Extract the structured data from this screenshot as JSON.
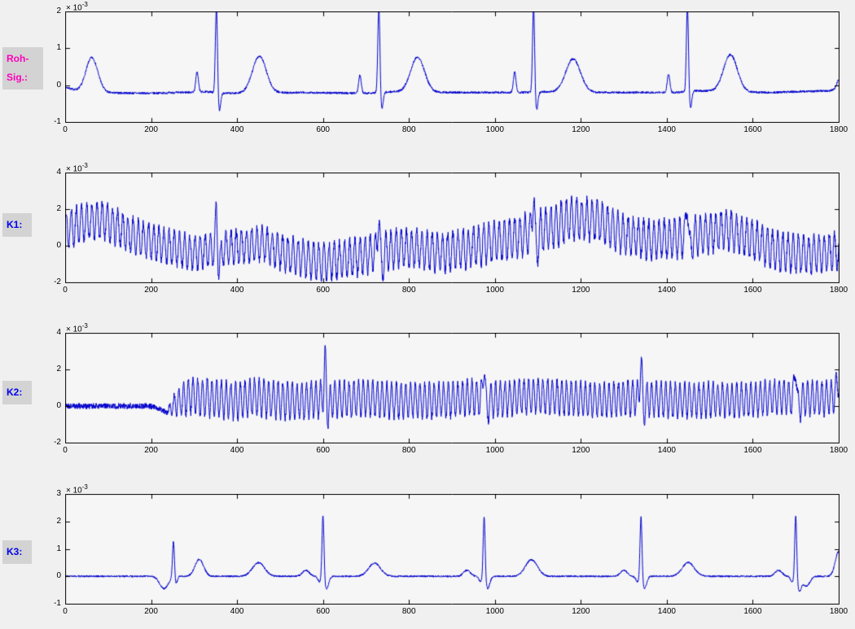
{
  "figure": {
    "background": "#f0f0f0",
    "plot_background": "#f6f6f6",
    "axis_color": "#000000"
  },
  "chart_data": [
    {
      "type": "line",
      "label_lines": [
        "Roh-",
        "Sig.:"
      ],
      "label_color": "#ff00bb",
      "scale_label": "× 10",
      "scale_exp": "-3",
      "line_color": "#0000cc",
      "xlim": [
        0,
        1800
      ],
      "ylim": [
        -1,
        2
      ],
      "xticks": [
        0,
        200,
        400,
        600,
        800,
        1000,
        1200,
        1400,
        1600,
        1800
      ],
      "yticks": [
        -1,
        0,
        1,
        2
      ],
      "y_unit_multiplier": "1e-3",
      "signal": {
        "seed": 7,
        "noise": 0.03,
        "baseline": [
          [
            0,
            -0.05
          ],
          [
            40,
            -0.2
          ],
          [
            200,
            -0.22
          ],
          [
            330,
            -0.18
          ],
          [
            380,
            -0.22
          ],
          [
            560,
            -0.2
          ],
          [
            700,
            -0.22
          ],
          [
            760,
            -0.18
          ],
          [
            940,
            -0.2
          ],
          [
            1060,
            -0.2
          ],
          [
            1120,
            -0.18
          ],
          [
            1300,
            -0.2
          ],
          [
            1420,
            -0.2
          ],
          [
            1470,
            -0.15
          ],
          [
            1640,
            -0.2
          ],
          [
            1780,
            -0.15
          ],
          [
            1800,
            -0.05
          ]
        ],
        "bumps": [
          {
            "x": 62,
            "a": 0.95,
            "w": 14
          },
          {
            "x": 307,
            "a": 0.55,
            "w": 3
          },
          {
            "x": 352,
            "a": 2.35,
            "w": 2.4
          },
          {
            "x": 359,
            "a": -0.5,
            "w": 3
          },
          {
            "x": 452,
            "a": 1.0,
            "w": 16
          },
          {
            "x": 686,
            "a": 0.5,
            "w": 3
          },
          {
            "x": 730,
            "a": 2.35,
            "w": 2.4
          },
          {
            "x": 737,
            "a": -0.45,
            "w": 3
          },
          {
            "x": 820,
            "a": 0.95,
            "w": 16
          },
          {
            "x": 1046,
            "a": 0.55,
            "w": 3
          },
          {
            "x": 1090,
            "a": 2.35,
            "w": 2.4
          },
          {
            "x": 1097,
            "a": -0.5,
            "w": 3
          },
          {
            "x": 1182,
            "a": 0.9,
            "w": 17
          },
          {
            "x": 1404,
            "a": 0.5,
            "w": 3
          },
          {
            "x": 1448,
            "a": 2.35,
            "w": 2.4
          },
          {
            "x": 1455,
            "a": -0.45,
            "w": 3
          },
          {
            "x": 1548,
            "a": 1.0,
            "w": 16
          },
          {
            "x": 1800,
            "a": 0.2,
            "w": 4
          }
        ],
        "osc": null
      }
    },
    {
      "type": "line",
      "label_lines": [
        "K1:"
      ],
      "label_color": "#0000ee",
      "scale_label": "× 10",
      "scale_exp": "-3",
      "line_color": "#0000cc",
      "xlim": [
        0,
        1800
      ],
      "ylim": [
        -2,
        4
      ],
      "xticks": [
        0,
        200,
        400,
        600,
        800,
        1000,
        1200,
        1400,
        1600,
        1800
      ],
      "yticks": [
        -2,
        0,
        2,
        4
      ],
      "y_unit_multiplier": "1e-3",
      "signal": {
        "seed": 13,
        "noise": 0.22,
        "baseline": [
          [
            0,
            0.9
          ],
          [
            50,
            1.3
          ],
          [
            90,
            1.4
          ],
          [
            150,
            0.6
          ],
          [
            200,
            0.2
          ],
          [
            250,
            -0.1
          ],
          [
            300,
            -0.4
          ],
          [
            360,
            -0.2
          ],
          [
            420,
            0
          ],
          [
            460,
            0.1
          ],
          [
            520,
            -0.5
          ],
          [
            600,
            -0.9
          ],
          [
            660,
            -0.7
          ],
          [
            720,
            -0.4
          ],
          [
            780,
            -0.1
          ],
          [
            830,
            -0.2
          ],
          [
            880,
            -0.4
          ],
          [
            940,
            -0.1
          ],
          [
            1000,
            0.2
          ],
          [
            1060,
            0.5
          ],
          [
            1120,
            0.9
          ],
          [
            1180,
            1.5
          ],
          [
            1240,
            1.4
          ],
          [
            1300,
            0.6
          ],
          [
            1360,
            0.3
          ],
          [
            1420,
            0.4
          ],
          [
            1480,
            0.6
          ],
          [
            1540,
            0.9
          ],
          [
            1600,
            0.3
          ],
          [
            1660,
            -0.3
          ],
          [
            1720,
            -0.5
          ],
          [
            1800,
            -0.3
          ]
        ],
        "bumps": [
          {
            "x": 352,
            "a": 2.2,
            "w": 2.4
          },
          {
            "x": 358,
            "a": -1.0,
            "w": 4
          },
          {
            "x": 730,
            "a": 2.4,
            "w": 2.4
          },
          {
            "x": 736,
            "a": -0.9,
            "w": 4
          },
          {
            "x": 1090,
            "a": 2.6,
            "w": 2.4
          },
          {
            "x": 1096,
            "a": -1.0,
            "w": 4
          },
          {
            "x": 1448,
            "a": 2.4,
            "w": 2.4
          },
          {
            "x": 1454,
            "a": -0.9,
            "w": 4
          }
        ],
        "osc": {
          "period": 12,
          "phase": 0.4,
          "env": [
            [
              0,
              1.0
            ],
            [
              300,
              0.85
            ],
            [
              600,
              0.95
            ],
            [
              900,
              1.0
            ],
            [
              1150,
              1.15
            ],
            [
              1300,
              1.0
            ],
            [
              1800,
              1.0
            ]
          ]
        }
      }
    },
    {
      "type": "line",
      "label_lines": [
        "K2:"
      ],
      "label_color": "#0000ee",
      "scale_label": "× 10",
      "scale_exp": "-3",
      "line_color": "#0000cc",
      "xlim": [
        0,
        1800
      ],
      "ylim": [
        -2,
        4
      ],
      "xticks": [
        0,
        200,
        400,
        600,
        800,
        1000,
        1200,
        1400,
        1600,
        1800
      ],
      "yticks": [
        -2,
        0,
        2,
        4
      ],
      "y_unit_multiplier": "1e-3",
      "signal": {
        "seed": 21,
        "noise": 0.16,
        "baseline": [
          [
            0,
            0
          ],
          [
            195,
            0
          ],
          [
            215,
            -0.1
          ],
          [
            235,
            -0.35
          ],
          [
            255,
            0.1
          ],
          [
            290,
            0.55
          ],
          [
            330,
            0.45
          ],
          [
            400,
            0.25
          ],
          [
            440,
            0.5
          ],
          [
            480,
            0.35
          ],
          [
            540,
            0.25
          ],
          [
            605,
            0.4
          ],
          [
            660,
            0.35
          ],
          [
            700,
            0.45
          ],
          [
            760,
            0.3
          ],
          [
            850,
            0.3
          ],
          [
            910,
            0.35
          ],
          [
            945,
            0.5
          ],
          [
            1000,
            0.35
          ],
          [
            1060,
            0.5
          ],
          [
            1110,
            0.55
          ],
          [
            1170,
            0.45
          ],
          [
            1230,
            0.3
          ],
          [
            1300,
            0.4
          ],
          [
            1345,
            0.45
          ],
          [
            1420,
            0.3
          ],
          [
            1500,
            0.35
          ],
          [
            1570,
            0.3
          ],
          [
            1650,
            0.5
          ],
          [
            1710,
            0.45
          ],
          [
            1770,
            0.4
          ],
          [
            1800,
            0.55
          ]
        ],
        "bumps": [
          {
            "x": 605,
            "a": 2.2,
            "w": 2.4
          },
          {
            "x": 611,
            "a": -0.7,
            "w": 4
          },
          {
            "x": 975,
            "a": 2.1,
            "w": 2.4
          },
          {
            "x": 981,
            "a": -0.7,
            "w": 4
          },
          {
            "x": 1340,
            "a": 2.15,
            "w": 2.4
          },
          {
            "x": 1346,
            "a": -0.7,
            "w": 4
          },
          {
            "x": 1700,
            "a": 2.05,
            "w": 2.4
          },
          {
            "x": 1706,
            "a": -0.7,
            "w": 4
          },
          {
            "x": 1800,
            "a": 0.9,
            "w": 5
          }
        ],
        "osc": {
          "period": 11,
          "phase": 1.2,
          "env": [
            [
              0,
              0
            ],
            [
              235,
              0
            ],
            [
              252,
              0.5
            ],
            [
              275,
              0.9
            ],
            [
              320,
              1.0
            ],
            [
              900,
              0.92
            ],
            [
              1800,
              0.9
            ]
          ]
        }
      }
    },
    {
      "type": "line",
      "label_lines": [
        "K3:"
      ],
      "label_color": "#0000ee",
      "scale_label": "× 10",
      "scale_exp": "-3",
      "line_color": "#0000cc",
      "xlim": [
        0,
        1800
      ],
      "ylim": [
        -1,
        3
      ],
      "xticks": [
        0,
        200,
        400,
        600,
        800,
        1000,
        1200,
        1400,
        1600,
        1800
      ],
      "yticks": [
        -1,
        0,
        1,
        2,
        3
      ],
      "y_unit_multiplier": "1e-3",
      "signal": {
        "seed": 33,
        "noise": 0.03,
        "baseline": [
          [
            0,
            0
          ],
          [
            1800,
            0
          ]
        ],
        "bumps": [
          {
            "x": 230,
            "a": -0.45,
            "w": 10
          },
          {
            "x": 252,
            "a": 1.35,
            "w": 2.2
          },
          {
            "x": 258,
            "a": -0.25,
            "w": 3
          },
          {
            "x": 312,
            "a": 0.62,
            "w": 10
          },
          {
            "x": 450,
            "a": 0.5,
            "w": 14
          },
          {
            "x": 560,
            "a": 0.22,
            "w": 8
          },
          {
            "x": 592,
            "a": -0.2,
            "w": 4
          },
          {
            "x": 600,
            "a": 2.35,
            "w": 2.3
          },
          {
            "x": 608,
            "a": -0.45,
            "w": 5
          },
          {
            "x": 720,
            "a": 0.48,
            "w": 14
          },
          {
            "x": 935,
            "a": 0.22,
            "w": 8
          },
          {
            "x": 967,
            "a": -0.2,
            "w": 4
          },
          {
            "x": 975,
            "a": 2.3,
            "w": 2.3
          },
          {
            "x": 983,
            "a": -0.45,
            "w": 5
          },
          {
            "x": 1085,
            "a": 0.6,
            "w": 14
          },
          {
            "x": 1300,
            "a": 0.22,
            "w": 8
          },
          {
            "x": 1332,
            "a": -0.2,
            "w": 4
          },
          {
            "x": 1340,
            "a": 2.3,
            "w": 2.3
          },
          {
            "x": 1348,
            "a": -0.45,
            "w": 5
          },
          {
            "x": 1450,
            "a": 0.5,
            "w": 14
          },
          {
            "x": 1660,
            "a": 0.22,
            "w": 8
          },
          {
            "x": 1692,
            "a": -0.2,
            "w": 4
          },
          {
            "x": 1700,
            "a": 2.35,
            "w": 2.3
          },
          {
            "x": 1708,
            "a": -0.5,
            "w": 5
          },
          {
            "x": 1725,
            "a": -0.35,
            "w": 8
          },
          {
            "x": 1800,
            "a": 0.9,
            "w": 8
          }
        ],
        "osc": null
      }
    }
  ]
}
